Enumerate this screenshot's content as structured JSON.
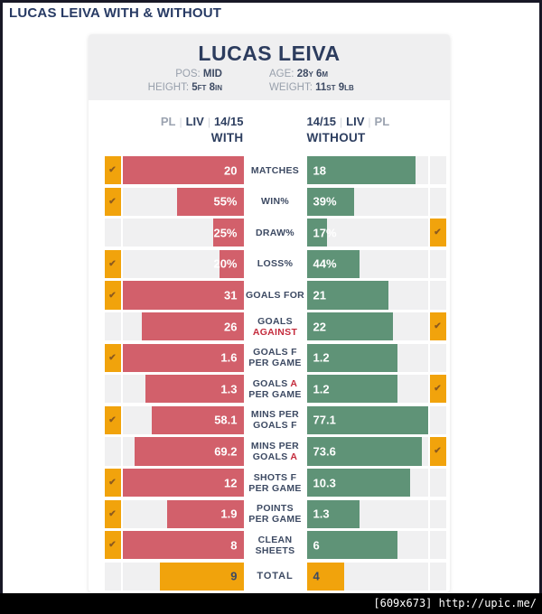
{
  "page": {
    "title": "LUCAS LEIVA WITH & WITHOUT",
    "watermark": "[609x673] http://upic.me/"
  },
  "colors": {
    "with_bar": "#d2606b",
    "without_bar": "#5f9377",
    "highlight_orange": "#f1a30c",
    "check_mark": "#8c5a1e",
    "navy_text": "#2e3f60",
    "accent_red": "#c42b3c",
    "muted_gray": "#98a0ac",
    "track_gray": "#f0f0f1",
    "card_gray": "#efeff0"
  },
  "player_card": {
    "name": "LUCAS LEIVA",
    "info": [
      {
        "label": "POS:",
        "value": "MID"
      },
      {
        "label": "AGE:",
        "value": "28y 6m"
      },
      {
        "label": "HEIGHT:",
        "value": "5ft 8in"
      },
      {
        "label": "WEIGHT:",
        "value": "11st 9lb"
      }
    ]
  },
  "columns": {
    "left": {
      "items": [
        {
          "text": "PL",
          "muted": true
        },
        {
          "text": "LIV",
          "muted": false
        },
        {
          "text": "14/15",
          "muted": false
        }
      ],
      "line2": "WITH"
    },
    "right": {
      "items": [
        {
          "text": "14/15",
          "muted": false
        },
        {
          "text": "LIV",
          "muted": false
        },
        {
          "text": "PL",
          "muted": true
        }
      ],
      "line2": "WITHOUT"
    }
  },
  "chart_data": {
    "type": "bar",
    "orientation": "diverging horizontal comparison (red = with, green = without)",
    "title": "LUCAS LEIVA WITH & WITHOUT",
    "legend": [
      "PL LIV 14/15 WITH",
      "14/15 LIV PL WITHOUT"
    ],
    "categories": [
      "MATCHES",
      "WIN%",
      "DRAW%",
      "LOSS%",
      "GOALS FOR",
      "GOALS AGAINST",
      "GOALS F PER GAME",
      "GOALS A PER GAME",
      "MINS PER GOALS F",
      "MINS PER GOALS A",
      "SHOTS F PER GAME",
      "POINTS PER GAME",
      "CLEAN SHEETS",
      "TOTAL"
    ],
    "series": [
      {
        "name": "WITH",
        "values": [
          20,
          55,
          25,
          20,
          31,
          26,
          1.6,
          1.3,
          58.1,
          69.2,
          12,
          1.9,
          8,
          9
        ]
      },
      {
        "name": "WITHOUT",
        "values": [
          18,
          39,
          17,
          44,
          21,
          22,
          1.2,
          1.2,
          77.1,
          73.6,
          10.3,
          1.3,
          6,
          4
        ]
      }
    ],
    "winner_side": [
      "with",
      "with",
      "without",
      "with",
      "with",
      "without",
      "with",
      "without",
      "with",
      "without",
      "with",
      "with",
      "with",
      null
    ],
    "rows": [
      {
        "label": [
          [
            {
              "t": "MATCHES"
            }
          ]
        ],
        "left": {
          "value": "20",
          "pct": 100,
          "check": true
        },
        "right": {
          "value": "18",
          "pct": 90,
          "check": false
        },
        "total": false
      },
      {
        "label": [
          [
            {
              "t": "WIN%"
            }
          ]
        ],
        "left": {
          "value": "55%",
          "pct": 55,
          "check": true
        },
        "right": {
          "value": "39%",
          "pct": 39,
          "check": false
        },
        "total": false
      },
      {
        "label": [
          [
            {
              "t": "DRAW%"
            }
          ]
        ],
        "left": {
          "value": "25%",
          "pct": 25,
          "check": false
        },
        "right": {
          "value": "17%",
          "pct": 17,
          "check": true
        },
        "total": false
      },
      {
        "label": [
          [
            {
              "t": "LOSS%"
            }
          ]
        ],
        "left": {
          "value": "20%",
          "pct": 20,
          "check": true
        },
        "right": {
          "value": "44%",
          "pct": 44,
          "check": false
        },
        "total": false
      },
      {
        "label": [
          [
            {
              "t": "GOALS FOR"
            }
          ]
        ],
        "left": {
          "value": "31",
          "pct": 100,
          "check": true
        },
        "right": {
          "value": "21",
          "pct": 67.7,
          "check": false
        },
        "total": false
      },
      {
        "label": [
          [
            {
              "t": "GOALS"
            }
          ],
          [
            {
              "t": "AGAINST",
              "red": true
            }
          ]
        ],
        "left": {
          "value": "26",
          "pct": 83.9,
          "check": false
        },
        "right": {
          "value": "22",
          "pct": 71,
          "check": true
        },
        "total": false
      },
      {
        "label": [
          [
            {
              "t": "GOALS F"
            }
          ],
          [
            {
              "t": "PER GAME"
            }
          ]
        ],
        "left": {
          "value": "1.6",
          "pct": 100,
          "check": true
        },
        "right": {
          "value": "1.2",
          "pct": 75,
          "check": false
        },
        "total": false
      },
      {
        "label": [
          [
            {
              "t": "GOALS "
            },
            {
              "t": "A",
              "red": true
            }
          ],
          [
            {
              "t": "PER GAME"
            }
          ]
        ],
        "left": {
          "value": "1.3",
          "pct": 81.3,
          "check": false
        },
        "right": {
          "value": "1.2",
          "pct": 75,
          "check": true
        },
        "total": false
      },
      {
        "label": [
          [
            {
              "t": "MINS PER"
            }
          ],
          [
            {
              "t": "GOALS F"
            }
          ]
        ],
        "left": {
          "value": "58.1",
          "pct": 75.4,
          "check": true
        },
        "right": {
          "value": "77.1",
          "pct": 100,
          "check": false
        },
        "total": false
      },
      {
        "label": [
          [
            {
              "t": "MINS PER"
            }
          ],
          [
            {
              "t": "GOALS "
            },
            {
              "t": "A",
              "red": true
            }
          ]
        ],
        "left": {
          "value": "69.2",
          "pct": 89.8,
          "check": false
        },
        "right": {
          "value": "73.6",
          "pct": 95.5,
          "check": true
        },
        "total": false
      },
      {
        "label": [
          [
            {
              "t": "SHOTS F"
            }
          ],
          [
            {
              "t": "PER GAME"
            }
          ]
        ],
        "left": {
          "value": "12",
          "pct": 100,
          "check": true
        },
        "right": {
          "value": "10.3",
          "pct": 85.8,
          "check": false
        },
        "total": false
      },
      {
        "label": [
          [
            {
              "t": "POINTS"
            }
          ],
          [
            {
              "t": "PER GAME"
            }
          ]
        ],
        "left": {
          "value": "1.9",
          "pct": 63.3,
          "check": true
        },
        "right": {
          "value": "1.3",
          "pct": 43.3,
          "check": false
        },
        "total": false
      },
      {
        "label": [
          [
            {
              "t": "CLEAN"
            }
          ],
          [
            {
              "t": "SHEETS"
            }
          ]
        ],
        "left": {
          "value": "8",
          "pct": 100,
          "check": true
        },
        "right": {
          "value": "6",
          "pct": 75,
          "check": false
        },
        "total": false
      },
      {
        "label": [
          [
            {
              "t": "TOTAL"
            }
          ]
        ],
        "left": {
          "value": "9",
          "pct": 69.2,
          "check": false
        },
        "right": {
          "value": "4",
          "pct": 30.8,
          "check": false
        },
        "total": true
      }
    ]
  }
}
